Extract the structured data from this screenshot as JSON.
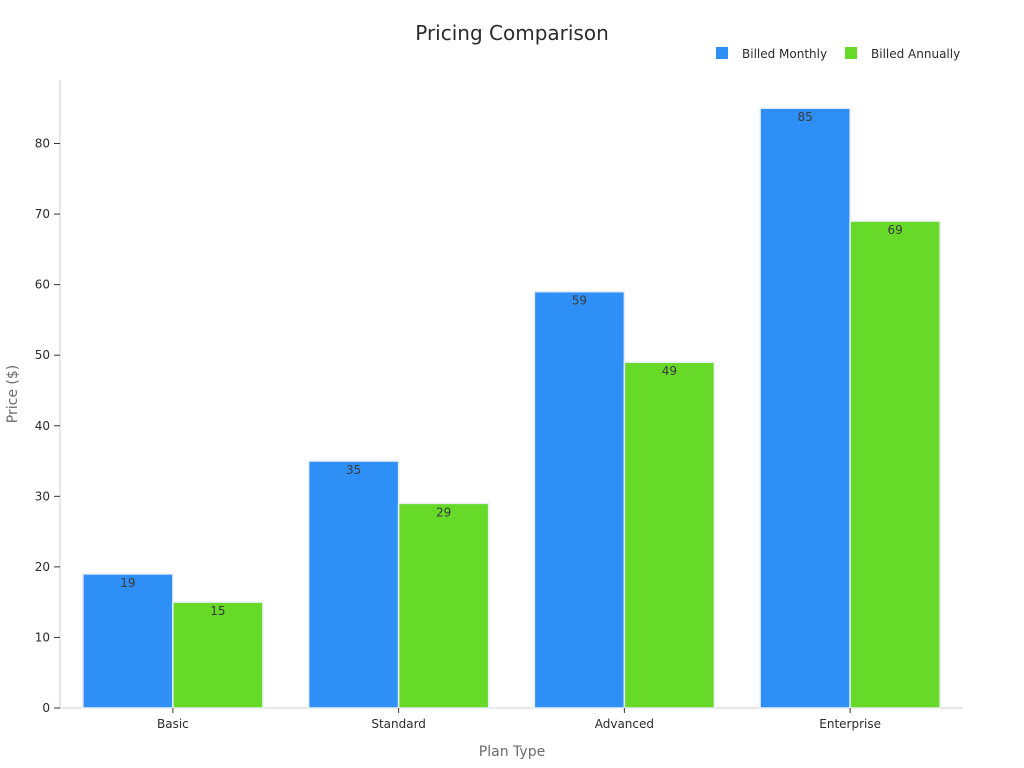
{
  "chart_data": {
    "type": "bar",
    "title": "Pricing Comparison",
    "xlabel": "Plan Type",
    "ylabel": "Price ($)",
    "categories": [
      "Basic",
      "Standard",
      "Advanced",
      "Enterprise"
    ],
    "series": [
      {
        "name": "Billed Monthly",
        "values": [
          19,
          35,
          59,
          85
        ],
        "color": "#2e90f7"
      },
      {
        "name": "Billed Annually",
        "values": [
          15,
          29,
          49,
          69
        ],
        "color": "#66d929"
      }
    ],
    "ylim": [
      0,
      89
    ],
    "yticks": [
      0,
      10,
      20,
      30,
      40,
      50,
      60,
      70,
      80
    ],
    "grid": false,
    "legend_position": "top-right",
    "data_labels": true
  }
}
